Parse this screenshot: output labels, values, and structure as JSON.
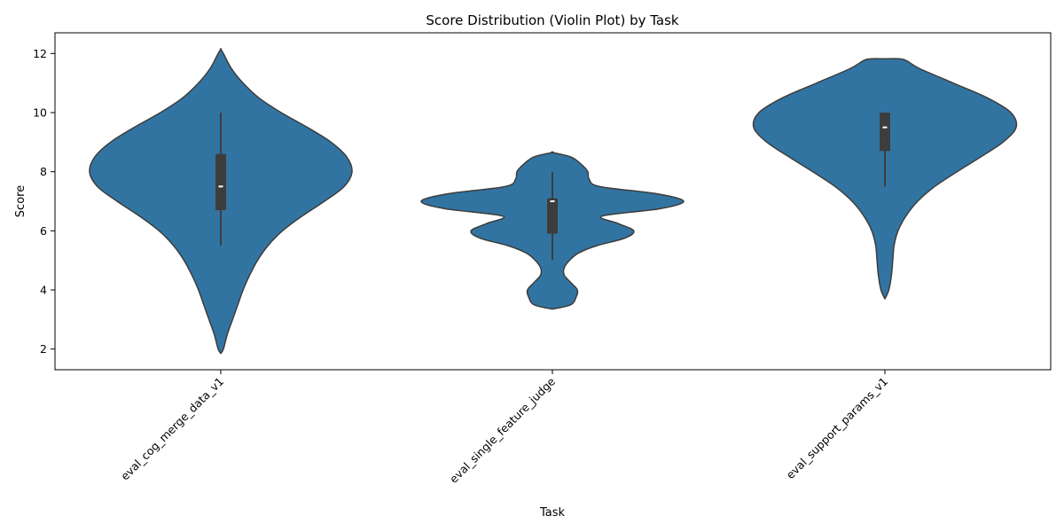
{
  "chart_data": {
    "type": "violin",
    "title": "Score Distribution (Violin Plot) by Task",
    "xlabel": "Task",
    "ylabel": "Score",
    "ylim": [
      1.3,
      12.7
    ],
    "yticks": [
      2,
      4,
      6,
      8,
      10,
      12
    ],
    "categories": [
      "eval_cog_merge_data_v1",
      "eval_single_feature_judge",
      "eval_support_params_v1"
    ],
    "x_tick_rotation": 45,
    "grid": false,
    "fill_color": "#3274a1",
    "edge_color": "#3d3d3d",
    "violins": [
      {
        "category": "eval_cog_merge_data_v1",
        "whisker_low": 5.5,
        "q1": 6.7,
        "median": 7.5,
        "q3": 8.6,
        "whisker_high": 10.0,
        "profile": [
          [
            1.85,
            0.0
          ],
          [
            2.0,
            0.02
          ],
          [
            2.5,
            0.05
          ],
          [
            3.0,
            0.09
          ],
          [
            3.5,
            0.13
          ],
          [
            4.0,
            0.17
          ],
          [
            4.5,
            0.22
          ],
          [
            5.0,
            0.28
          ],
          [
            5.5,
            0.36
          ],
          [
            6.0,
            0.47
          ],
          [
            6.5,
            0.62
          ],
          [
            7.0,
            0.79
          ],
          [
            7.5,
            0.94
          ],
          [
            8.0,
            1.0
          ],
          [
            8.5,
            0.96
          ],
          [
            9.0,
            0.84
          ],
          [
            9.5,
            0.66
          ],
          [
            10.0,
            0.46
          ],
          [
            10.5,
            0.29
          ],
          [
            11.0,
            0.17
          ],
          [
            11.5,
            0.08
          ],
          [
            12.0,
            0.02
          ],
          [
            12.15,
            0.0
          ]
        ]
      },
      {
        "category": "eval_single_feature_judge",
        "whisker_low": 5.0,
        "q1": 5.9,
        "median": 7.0,
        "q3": 7.1,
        "whisker_high": 8.0,
        "profile": [
          [
            3.35,
            0.0
          ],
          [
            3.5,
            0.14
          ],
          [
            3.75,
            0.18
          ],
          [
            4.0,
            0.19
          ],
          [
            4.25,
            0.14
          ],
          [
            4.5,
            0.09
          ],
          [
            4.75,
            0.09
          ],
          [
            5.0,
            0.13
          ],
          [
            5.25,
            0.2
          ],
          [
            5.5,
            0.34
          ],
          [
            5.75,
            0.55
          ],
          [
            6.0,
            0.62
          ],
          [
            6.25,
            0.5
          ],
          [
            6.5,
            0.38
          ],
          [
            6.75,
            0.82
          ],
          [
            7.0,
            1.0
          ],
          [
            7.25,
            0.8
          ],
          [
            7.5,
            0.36
          ],
          [
            7.75,
            0.28
          ],
          [
            8.0,
            0.27
          ],
          [
            8.25,
            0.22
          ],
          [
            8.5,
            0.14
          ],
          [
            8.65,
            0.0
          ]
        ]
      },
      {
        "category": "eval_support_params_v1",
        "whisker_low": 7.5,
        "q1": 8.7,
        "median": 9.5,
        "q3": 10.0,
        "whisker_high": 10.0,
        "profile": [
          [
            3.7,
            0.0
          ],
          [
            4.0,
            0.03
          ],
          [
            4.5,
            0.05
          ],
          [
            5.0,
            0.06
          ],
          [
            5.5,
            0.07
          ],
          [
            6.0,
            0.1
          ],
          [
            6.5,
            0.16
          ],
          [
            7.0,
            0.25
          ],
          [
            7.5,
            0.38
          ],
          [
            8.0,
            0.55
          ],
          [
            8.5,
            0.73
          ],
          [
            9.0,
            0.9
          ],
          [
            9.5,
            1.0
          ],
          [
            10.0,
            0.96
          ],
          [
            10.5,
            0.78
          ],
          [
            11.0,
            0.52
          ],
          [
            11.5,
            0.26
          ],
          [
            11.8,
            0.14
          ],
          [
            11.82,
            0.0
          ]
        ]
      }
    ]
  }
}
